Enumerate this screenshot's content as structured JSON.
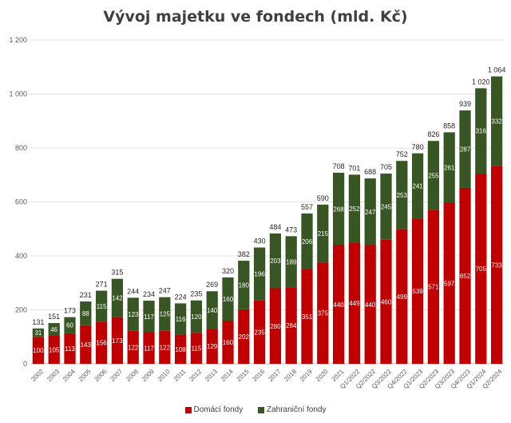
{
  "chart_data": {
    "type": "bar",
    "stacked": true,
    "title": "Vývoj majetku ve fondech (mld. Kč)",
    "xlabel": "",
    "ylabel": "",
    "ylim": [
      0,
      1200
    ],
    "yticks": [
      "0",
      "200",
      "400",
      "600",
      "800",
      "1 000",
      "1 200"
    ],
    "grid": true,
    "legend_position": "bottom",
    "categories": [
      "2002",
      "2003",
      "2004",
      "2005",
      "2006",
      "2007",
      "2008",
      "2009",
      "2010",
      "2011",
      "2012",
      "2013",
      "2014",
      "2015",
      "2016",
      "2017",
      "2018",
      "2019",
      "2020",
      "2021",
      "Q1/2022",
      "Q2/2022",
      "Q3/2022",
      "Q4/2022",
      "Q1/2023",
      "Q2/2023",
      "Q3/2023",
      "Q4/2023",
      "Q1/2024",
      "Q2/2024"
    ],
    "series": [
      {
        "name": "Domácí fondy",
        "color": "#c00000",
        "values": [
          100,
          105,
          113,
          143,
          156,
          173,
          122,
          117,
          122,
          108,
          115,
          129,
          160,
          202,
          235,
          280,
          284,
          351,
          375,
          440,
          449,
          440,
          460,
          499,
          539,
          571,
          597,
          652,
          705,
          733
        ],
        "labels": [
          "100",
          "105",
          "113",
          "143",
          "156",
          "173",
          "122",
          "117",
          "122",
          "108",
          "115",
          "129",
          "160",
          "202",
          "235",
          "280",
          "284",
          "351",
          "375",
          "440",
          "449",
          "440",
          "460",
          "499",
          "539",
          "571",
          "597",
          "652",
          "705",
          "733"
        ]
      },
      {
        "name": "Zahraniční fondy",
        "color": "#375623",
        "values": [
          31,
          46,
          60,
          88,
          115,
          142,
          123,
          117,
          125,
          116,
          120,
          140,
          160,
          180,
          196,
          203,
          189,
          206,
          215,
          268,
          252,
          247,
          245,
          253,
          241,
          255,
          261,
          287,
          316,
          332
        ],
        "labels": [
          "31",
          "46",
          "60",
          "88",
          "115",
          "142",
          "123",
          "117",
          "125",
          "116",
          "120",
          "140",
          "160",
          "180",
          "196",
          "203",
          "189",
          "206",
          "215",
          "268",
          "252",
          "247",
          "245",
          "253",
          "241",
          "255",
          "261",
          "287",
          "316",
          "332"
        ]
      }
    ],
    "totals": [
      "131",
      "151",
      "173",
      "231",
      "271",
      "315",
      "244",
      "234",
      "247",
      "224",
      "235",
      "269",
      "320",
      "382",
      "430",
      "484",
      "473",
      "557",
      "590",
      "708",
      "701",
      "688",
      "705",
      "752",
      "780",
      "826",
      "858",
      "939",
      "1 020",
      "1 064"
    ]
  }
}
